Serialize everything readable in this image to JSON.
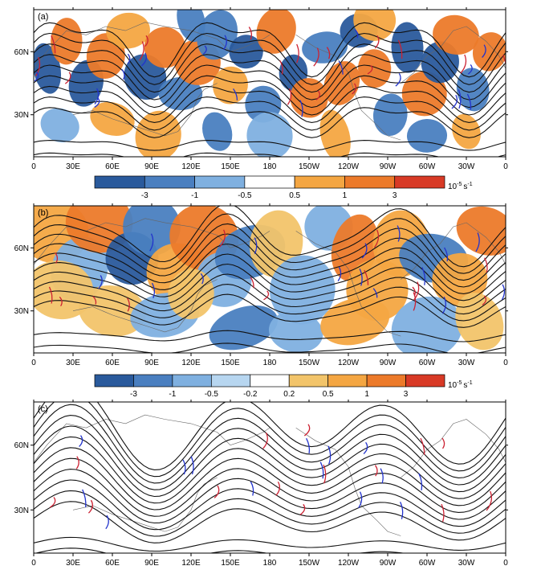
{
  "figure": {
    "palette": [
      "#2a5a9c",
      "#4a7fc0",
      "#7fb0e0",
      "#b7d6f0",
      "#ffffff",
      "#f2c46a",
      "#f4a642",
      "#ec7a2a",
      "#d83a26"
    ]
  },
  "chart_data": [
    {
      "id": "a",
      "panel_label": "(a)",
      "type": "heatmap",
      "kind": "map",
      "x_ticks": [
        "0",
        "30E",
        "60E",
        "90E",
        "120E",
        "150E",
        "180",
        "150W",
        "120W",
        "90W",
        "60W",
        "30W",
        "0"
      ],
      "y_ticks": [
        "60N",
        "30N"
      ],
      "xlim": [
        0,
        360
      ],
      "ylim": [
        10,
        80
      ],
      "colorbar": {
        "labels": [
          "-3",
          "-1",
          "-0.5",
          "0.5",
          "1",
          "3"
        ],
        "unit": "10-5 s-1",
        "colors": [
          "#2a5a9c",
          "#4a7fc0",
          "#7fb0e0",
          "#ffffff",
          "#f4a642",
          "#ec7a2a",
          "#d83a26"
        ]
      },
      "field": {
        "blobs": [
          [
            10,
            52,
            -3
          ],
          [
            25,
            65,
            3
          ],
          [
            40,
            45,
            -3
          ],
          [
            55,
            58,
            3
          ],
          [
            72,
            70,
            1
          ],
          [
            85,
            48,
            -3
          ],
          [
            100,
            62,
            3
          ],
          [
            112,
            40,
            -1
          ],
          [
            125,
            55,
            3
          ],
          [
            140,
            68,
            -1
          ],
          [
            150,
            44,
            1
          ],
          [
            162,
            60,
            -3
          ],
          [
            175,
            35,
            -1
          ],
          [
            185,
            70,
            3
          ],
          [
            198,
            50,
            -3
          ],
          [
            210,
            38,
            3
          ],
          [
            222,
            62,
            -1
          ],
          [
            235,
            45,
            3
          ],
          [
            248,
            70,
            -3
          ],
          [
            260,
            52,
            3
          ],
          [
            272,
            30,
            -1
          ],
          [
            285,
            62,
            -3
          ],
          [
            298,
            40,
            3
          ],
          [
            310,
            55,
            -3
          ],
          [
            322,
            68,
            3
          ],
          [
            335,
            42,
            -1
          ],
          [
            348,
            60,
            3
          ],
          [
            60,
            28,
            1
          ],
          [
            140,
            22,
            -1
          ],
          [
            230,
            20,
            1
          ],
          [
            300,
            20,
            -1
          ],
          [
            20,
            25,
            -0.5
          ],
          [
            95,
            20,
            1
          ],
          [
            180,
            20,
            -0.5
          ],
          [
            330,
            22,
            1
          ],
          [
            120,
            75,
            -1
          ],
          [
            260,
            75,
            1
          ]
        ],
        "blob_size": [
          13,
          9
        ]
      },
      "contours": {
        "lines": 9,
        "lat_start": 28,
        "lat_step": 4.5,
        "waves": [
          [
            3,
            6,
            0
          ],
          [
            6,
            3,
            1.2
          ]
        ],
        "band_lines": 2,
        "band_lat": 16,
        "band_step": 6
      },
      "fronts": {
        "lat_range": [
          35,
          72
        ],
        "count": 36
      }
    },
    {
      "id": "b",
      "panel_label": "(b)",
      "type": "heatmap",
      "kind": "map",
      "x_ticks": [
        "0",
        "30E",
        "60E",
        "90E",
        "120E",
        "150E",
        "180",
        "150W",
        "120W",
        "90W",
        "60W",
        "30W",
        "0"
      ],
      "y_ticks": [
        "60N",
        "30N"
      ],
      "xlim": [
        0,
        360
      ],
      "ylim": [
        10,
        80
      ],
      "colorbar": {
        "labels": [
          "-3",
          "-1",
          "-0.5",
          "-0.2",
          "0.2",
          "0.5",
          "1",
          "3"
        ],
        "unit": "10-5 s-1",
        "colors": [
          "#2a5a9c",
          "#4a7fc0",
          "#7fb0e0",
          "#b7d6f0",
          "#ffffff",
          "#f2c46a",
          "#f4a642",
          "#ec7a2a",
          "#d83a26"
        ]
      },
      "field": {
        "blobs": [
          [
            15,
            68,
            1
          ],
          [
            35,
            50,
            -0.5
          ],
          [
            50,
            72,
            3
          ],
          [
            75,
            55,
            -3
          ],
          [
            90,
            70,
            -1
          ],
          [
            110,
            48,
            1
          ],
          [
            130,
            65,
            3
          ],
          [
            145,
            45,
            -0.5
          ],
          [
            165,
            58,
            -1
          ],
          [
            185,
            62,
            0.5
          ],
          [
            205,
            40,
            -0.5
          ],
          [
            225,
            70,
            -0.5
          ],
          [
            245,
            60,
            3
          ],
          [
            262,
            40,
            1
          ],
          [
            280,
            62,
            1
          ],
          [
            305,
            55,
            -1
          ],
          [
            325,
            45,
            1
          ],
          [
            345,
            68,
            3
          ],
          [
            60,
            30,
            0.5
          ],
          [
            100,
            28,
            -0.5
          ],
          [
            160,
            22,
            -1
          ],
          [
            200,
            20,
            -0.5
          ],
          [
            245,
            25,
            1
          ],
          [
            300,
            22,
            -0.5
          ],
          [
            340,
            25,
            0.5
          ],
          [
            20,
            40,
            0.5
          ],
          [
            120,
            38,
            0.5
          ]
        ],
        "blob_size": [
          20,
          12
        ]
      },
      "contours": {
        "lines": 10,
        "lat_start": 30,
        "lat_step": 4,
        "waves": [
          [
            3,
            6,
            0
          ],
          [
            5,
            2,
            1.5
          ]
        ],
        "band_lines": 2,
        "band_lat": 18,
        "band_step": 6
      },
      "fronts": {
        "lat_range": [
          35,
          72
        ],
        "count": 30
      }
    },
    {
      "id": "c",
      "panel_label": "(c)",
      "type": "heatmap",
      "kind": "map",
      "x_ticks": [
        "0",
        "30E",
        "60E",
        "90E",
        "120E",
        "150E",
        "180",
        "150W",
        "120W",
        "90W",
        "60W",
        "30W",
        "0"
      ],
      "y_ticks": [
        "60N",
        "30N"
      ],
      "xlim": [
        0,
        360
      ],
      "ylim": [
        10,
        80
      ],
      "colorbar": null,
      "field": {
        "blobs": [],
        "blob_size": [
          10,
          10
        ]
      },
      "contours": {
        "lines": 12,
        "lat_start": 24,
        "lat_step": 4,
        "waves": [
          [
            3,
            7,
            0
          ],
          [
            2,
            3,
            0.8
          ]
        ],
        "band_lines": 2,
        "band_lat": 14,
        "band_step": 5
      },
      "fronts": {
        "lat_range": [
          25,
          72
        ],
        "count": 28
      }
    }
  ]
}
